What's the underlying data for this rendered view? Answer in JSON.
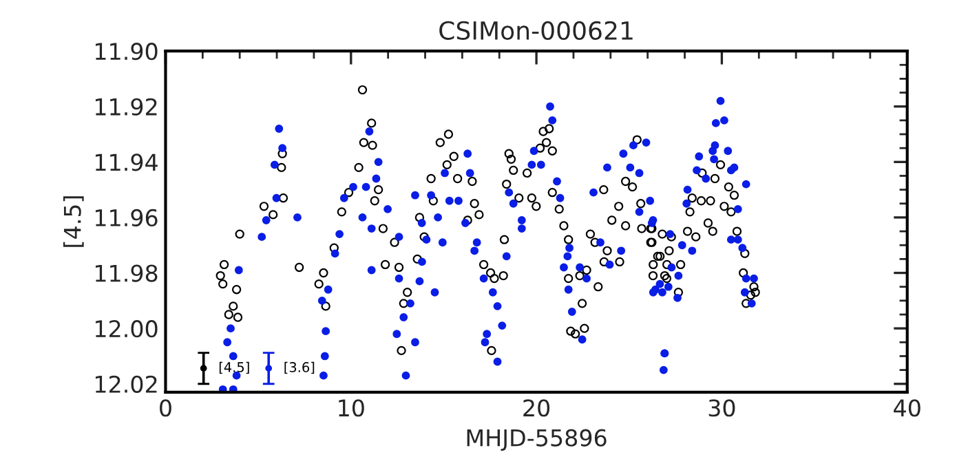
{
  "chart_data": {
    "type": "scatter",
    "title": "CSIMon-000621",
    "xlabel": "MHJD-55896",
    "ylabel": "[4.5]",
    "xlim": [
      0,
      40
    ],
    "xticks": [
      0,
      10,
      20,
      30,
      40
    ],
    "ylim": [
      12.023,
      11.9
    ],
    "yticks": [
      {
        "value": 11.9,
        "label": "11.90"
      },
      11.92,
      11.94,
      11.96,
      11.98,
      {
        "value": 12.0,
        "label": "12.00"
      },
      12.02
    ],
    "grid": false,
    "legend": false,
    "marker": "circle",
    "series": [
      {
        "color": "#000000",
        "x": [
          3.16,
          2.96,
          3.09,
          3.83,
          3.65,
          3.41,
          3.9,
          4.0,
          5.31,
          5.8,
          6.3,
          6.25,
          6.35,
          7.21,
          8.27,
          8.64,
          8.52,
          9.09,
          9.5,
          9.88,
          10.42,
          10.62,
          11.11,
          10.69,
          11.16,
          11.48,
          11.28,
          11.73,
          12.35,
          11.85,
          12.59,
          13.04,
          12.84,
          12.72,
          13.58,
          13.7,
          13.95,
          14.32,
          14.44,
          14.81,
          15.26,
          15.18,
          15.75,
          15.55,
          16.54,
          16.66,
          16.91,
          16.29,
          17.16,
          17.53,
          17.73,
          18.27,
          18.22,
          17.58,
          18.52,
          18.64,
          18.76,
          18.39,
          19.06,
          19.5,
          19.75,
          19.99,
          20.37,
          20.69,
          20.54,
          20.2,
          20.86,
          20.86,
          21.23,
          21.48,
          21.73,
          21.73,
          22.34,
          22.71,
          22.47,
          21.85,
          22.1,
          22.59,
          23.33,
          22.91,
          23.16,
          23.82,
          23.65,
          24.49,
          23.63,
          24.44,
          24.07,
          24.81,
          24.81,
          25.18,
          25.43,
          25.63,
          25.68,
          26.17,
          26.17,
          26.54,
          26.29,
          27.03,
          27.28,
          26.23,
          26.79,
          26.23,
          27.16,
          26.67,
          26.3,
          27.04,
          27.78,
          26.92,
          27.66,
          28.15,
          28.6,
          28.28,
          28.4,
          28.89,
          29.26,
          29.51,
          28.94,
          29.39,
          29.63,
          29.93,
          30.37,
          30.67,
          30.13,
          30.5,
          30.82,
          31.24,
          31.16,
          31.73,
          31.81,
          31.56,
          31.31
        ],
        "values": [
          11.977,
          11.981,
          11.984,
          11.986,
          11.992,
          11.995,
          11.996,
          11.966,
          11.956,
          11.959,
          11.937,
          11.942,
          11.953,
          11.978,
          11.984,
          11.992,
          11.98,
          11.971,
          11.958,
          11.951,
          11.942,
          11.914,
          11.926,
          11.933,
          11.934,
          11.95,
          11.954,
          11.964,
          11.969,
          11.977,
          11.978,
          11.987,
          11.991,
          12.008,
          11.975,
          11.96,
          11.967,
          11.946,
          11.954,
          11.933,
          11.93,
          11.941,
          11.946,
          11.938,
          11.947,
          11.955,
          11.959,
          11.961,
          11.977,
          11.98,
          11.982,
          11.968,
          11.981,
          12.008,
          11.937,
          11.939,
          11.943,
          11.948,
          11.953,
          11.944,
          11.953,
          11.956,
          11.929,
          11.928,
          11.933,
          11.935,
          11.936,
          11.951,
          11.957,
          11.963,
          11.968,
          11.982,
          11.981,
          11.979,
          11.991,
          12.001,
          12.002,
          12.0,
          11.985,
          11.966,
          11.969,
          11.972,
          11.976,
          11.976,
          11.95,
          11.956,
          11.961,
          11.963,
          11.947,
          11.949,
          11.932,
          11.955,
          11.964,
          11.964,
          11.969,
          11.974,
          11.981,
          11.982,
          11.967,
          11.964,
          11.966,
          11.969,
          11.972,
          11.974,
          11.977,
          11.977,
          11.977,
          11.981,
          11.987,
          11.965,
          11.967,
          11.958,
          11.953,
          11.954,
          11.962,
          11.965,
          11.944,
          11.954,
          11.946,
          11.941,
          11.949,
          11.952,
          11.956,
          11.958,
          11.965,
          11.973,
          11.98,
          11.985,
          11.987,
          11.988,
          11.991
        ]
      },
      {
        "color": "#0a1ee6",
        "x": [
          6.12,
          6.3,
          5.88,
          5.98,
          5.43,
          5.19,
          7.11,
          3.95,
          3.51,
          3.33,
          3.65,
          3.09,
          3.65,
          3.83,
          8.59,
          8.52,
          8.64,
          8.77,
          8.44,
          9.14,
          9.38,
          9.63,
          10.12,
          10.81,
          11.48,
          10.99,
          11.36,
          10.62,
          11.11,
          11.98,
          12.59,
          11.11,
          12.59,
          13.7,
          13.2,
          12.84,
          12.47,
          12.96,
          13.46,
          13.46,
          13.83,
          13.82,
          14.07,
          14.52,
          14.32,
          14.69,
          15.06,
          14.94,
          15.31,
          15.8,
          16.29,
          16.42,
          16.17,
          16.79,
          16.66,
          17.16,
          17.65,
          17.9,
          17.33,
          17.23,
          18.15,
          17.9,
          18.39,
          18.52,
          18.76,
          19.21,
          19.21,
          19.75,
          19.87,
          20.25,
          20.74,
          20.86,
          21.11,
          21.28,
          21.68,
          21.78,
          21.48,
          21.73,
          21.92,
          22.47,
          22.34,
          22.71,
          23.08,
          23.45,
          23.82,
          23.95,
          24.57,
          24.69,
          25.06,
          25.23,
          25.92,
          25.55,
          25.55,
          26.29,
          26.42,
          26.66,
          26.79,
          26.91,
          26.86,
          26.13,
          26.23,
          27.21,
          27.86,
          28.4,
          27.29,
          27.66,
          26.3,
          27.12,
          27.61,
          26.92,
          28.15,
          28.1,
          28.65,
          28.77,
          29.58,
          29.51,
          30.33,
          29.68,
          30.13,
          29.93,
          29.63,
          30.5,
          30.67,
          31.31,
          29.14,
          30.87,
          30.5,
          30.87,
          31.11,
          31.31,
          31.73,
          31.24,
          31.61
        ],
        "values": [
          11.928,
          11.935,
          11.941,
          11.953,
          11.961,
          11.967,
          11.96,
          11.979,
          12.0,
          12.005,
          12.01,
          12.022,
          12.022,
          12.017,
          12.01,
          12.017,
          12.001,
          11.986,
          11.99,
          11.973,
          11.966,
          11.953,
          11.949,
          11.949,
          11.94,
          11.929,
          11.946,
          11.96,
          11.964,
          11.957,
          11.967,
          11.979,
          11.982,
          11.983,
          11.991,
          11.996,
          12.002,
          12.017,
          12.005,
          11.952,
          11.976,
          11.962,
          11.968,
          11.987,
          11.952,
          11.96,
          11.944,
          11.969,
          11.954,
          11.954,
          11.937,
          11.944,
          11.962,
          11.969,
          11.972,
          11.982,
          11.987,
          11.992,
          12.002,
          12.005,
          11.999,
          12.012,
          11.974,
          11.951,
          11.955,
          11.961,
          11.964,
          11.941,
          11.936,
          11.941,
          11.92,
          11.925,
          11.947,
          11.953,
          11.974,
          11.971,
          11.978,
          11.986,
          11.994,
          12.004,
          11.978,
          11.982,
          11.951,
          11.969,
          11.942,
          11.977,
          11.972,
          11.937,
          11.942,
          11.934,
          11.933,
          11.944,
          11.958,
          11.961,
          11.986,
          11.984,
          11.987,
          12.009,
          12.015,
          11.954,
          11.962,
          11.966,
          11.97,
          11.972,
          11.978,
          11.981,
          11.987,
          11.985,
          11.989,
          12.009,
          11.95,
          11.955,
          11.943,
          11.938,
          11.939,
          11.936,
          11.936,
          11.926,
          11.925,
          11.918,
          11.934,
          11.943,
          11.942,
          11.948,
          11.946,
          11.957,
          11.968,
          11.968,
          11.971,
          11.982,
          11.982,
          11.987,
          11.991
        ]
      },
      {
        "name": "[4.5]",
        "color": "#000000",
        "x": [
          2.05
        ],
        "values": [
          12.0144
        ],
        "errors": [
          0.0056
        ]
      },
      {
        "name": "[3.6]",
        "color": "#0a1ee6",
        "x": [
          5.56
        ],
        "values": [
          12.0144
        ],
        "errors": [
          0.0056
        ]
      }
    ]
  }
}
